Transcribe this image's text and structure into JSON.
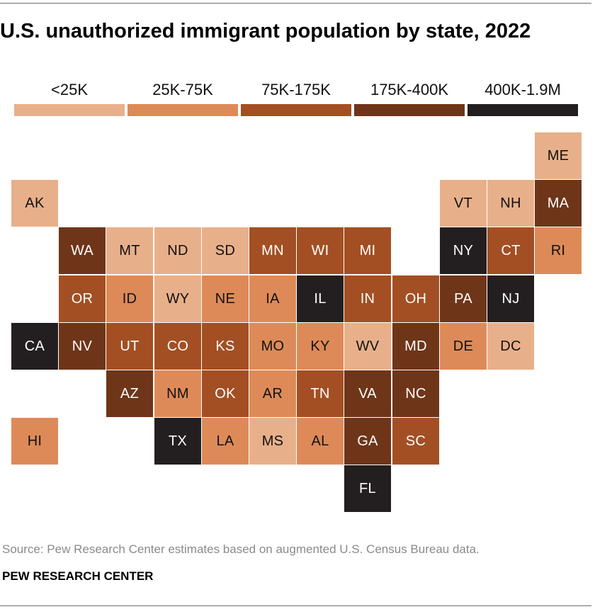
{
  "title": "U.S. unauthorized immigrant population by state, 2022",
  "source": "Source: Pew Research Center estimates based on augmented U.S. Census Bureau data.",
  "org": "PEW RESEARCH CENTER",
  "colors": {
    "c1": "#e8b08a",
    "c2": "#dd8a58",
    "c3": "#a34f23",
    "c4": "#6e3519",
    "c5": "#231f20",
    "text_dark": "#111111",
    "text_light": "#ffffff"
  },
  "chart_data": {
    "type": "tile-map",
    "legend": [
      {
        "label": "<25K",
        "cls": "c1"
      },
      {
        "label": "25K-75K",
        "cls": "c2"
      },
      {
        "label": "75K-175K",
        "cls": "c3"
      },
      {
        "label": "175K-400K",
        "cls": "c4"
      },
      {
        "label": "400K-1.9M",
        "cls": "c5"
      }
    ],
    "states": [
      {
        "code": "ME",
        "cls": "c1"
      },
      {
        "code": "AK",
        "cls": "c1"
      },
      {
        "code": "VT",
        "cls": "c1"
      },
      {
        "code": "NH",
        "cls": "c1"
      },
      {
        "code": "MA",
        "cls": "c4"
      },
      {
        "code": "WA",
        "cls": "c4"
      },
      {
        "code": "MT",
        "cls": "c1"
      },
      {
        "code": "ND",
        "cls": "c1"
      },
      {
        "code": "SD",
        "cls": "c1"
      },
      {
        "code": "MN",
        "cls": "c3"
      },
      {
        "code": "WI",
        "cls": "c3"
      },
      {
        "code": "MI",
        "cls": "c3"
      },
      {
        "code": "NY",
        "cls": "c5"
      },
      {
        "code": "CT",
        "cls": "c3"
      },
      {
        "code": "RI",
        "cls": "c2"
      },
      {
        "code": "OR",
        "cls": "c3"
      },
      {
        "code": "ID",
        "cls": "c2"
      },
      {
        "code": "WY",
        "cls": "c1"
      },
      {
        "code": "NE",
        "cls": "c2"
      },
      {
        "code": "IA",
        "cls": "c2"
      },
      {
        "code": "IL",
        "cls": "c5"
      },
      {
        "code": "IN",
        "cls": "c3"
      },
      {
        "code": "OH",
        "cls": "c3"
      },
      {
        "code": "PA",
        "cls": "c4"
      },
      {
        "code": "NJ",
        "cls": "c5"
      },
      {
        "code": "CA",
        "cls": "c5"
      },
      {
        "code": "NV",
        "cls": "c4"
      },
      {
        "code": "UT",
        "cls": "c3"
      },
      {
        "code": "CO",
        "cls": "c3"
      },
      {
        "code": "KS",
        "cls": "c3"
      },
      {
        "code": "MO",
        "cls": "c2"
      },
      {
        "code": "KY",
        "cls": "c2"
      },
      {
        "code": "WV",
        "cls": "c1"
      },
      {
        "code": "MD",
        "cls": "c4"
      },
      {
        "code": "DE",
        "cls": "c2"
      },
      {
        "code": "DC",
        "cls": "c1"
      },
      {
        "code": "AZ",
        "cls": "c4"
      },
      {
        "code": "NM",
        "cls": "c2"
      },
      {
        "code": "OK",
        "cls": "c3"
      },
      {
        "code": "AR",
        "cls": "c2"
      },
      {
        "code": "TN",
        "cls": "c3"
      },
      {
        "code": "VA",
        "cls": "c4"
      },
      {
        "code": "NC",
        "cls": "c4"
      },
      {
        "code": "HI",
        "cls": "c2"
      },
      {
        "code": "TX",
        "cls": "c5"
      },
      {
        "code": "LA",
        "cls": "c2"
      },
      {
        "code": "MS",
        "cls": "c1"
      },
      {
        "code": "AL",
        "cls": "c2"
      },
      {
        "code": "GA",
        "cls": "c4"
      },
      {
        "code": "SC",
        "cls": "c3"
      },
      {
        "code": "FL",
        "cls": "c5"
      }
    ]
  }
}
